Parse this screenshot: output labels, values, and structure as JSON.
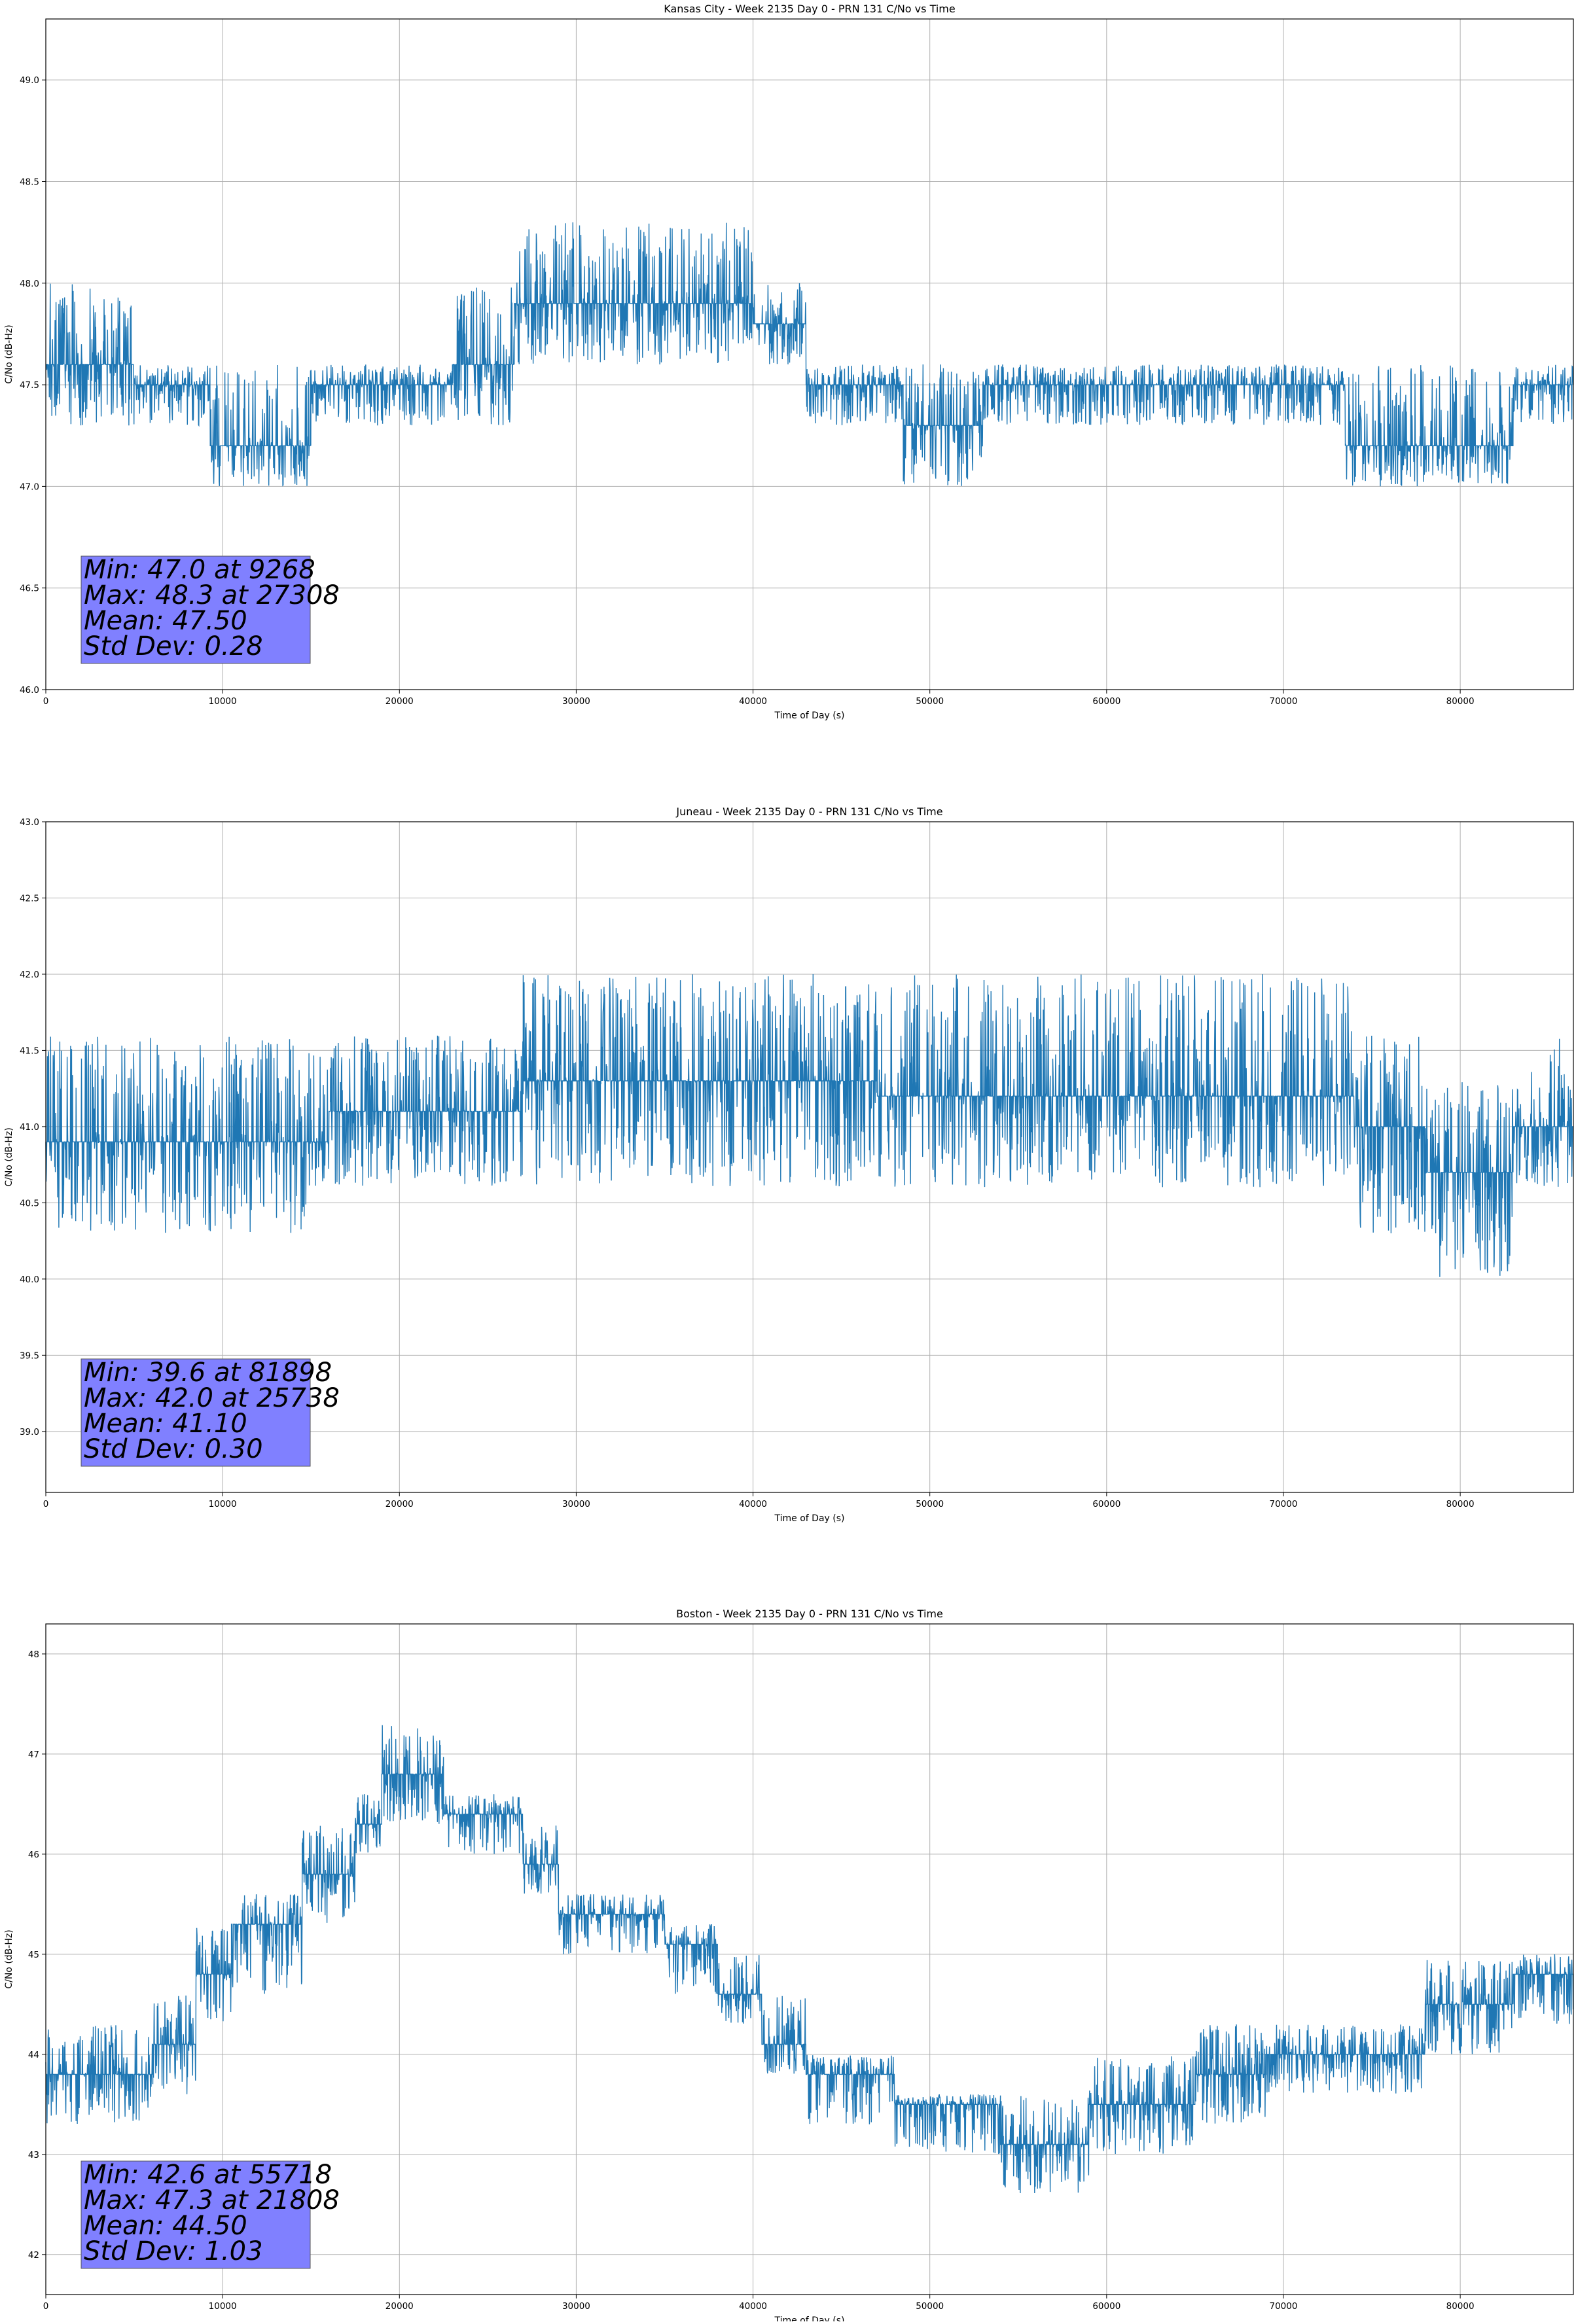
{
  "chart_data": [
    {
      "type": "line",
      "title": "Kansas City - Week 2135 Day 0 - PRN 131 C/No vs Time",
      "xlabel": "Time of Day (s)",
      "ylabel": "C/No (dB-Hz)",
      "xlim": [
        0,
        86400
      ],
      "ylim": [
        46.0,
        49.3
      ],
      "xticks": [
        0,
        10000,
        20000,
        30000,
        40000,
        50000,
        60000,
        70000,
        80000
      ],
      "yticks": [
        46.0,
        46.5,
        47.0,
        47.5,
        48.0,
        48.5,
        49.0
      ],
      "ytick_decimals": 1,
      "grid": true,
      "line_color": "#1f77b4",
      "stats": [
        "Min: 47.0 at 9268",
        "Max: 48.3 at 27308",
        "Mean: 47.50",
        "Std Dev: 0.28"
      ],
      "stats_box_color": "#8080ff",
      "series": [
        {
          "values_by_segment": [
            {
              "x0": 0,
              "x1": 5000,
              "base": 47.6,
              "range": [
                47.3,
                48.0
              ]
            },
            {
              "x0": 5000,
              "x1": 9300,
              "base": 47.5,
              "range": [
                47.3,
                47.6
              ]
            },
            {
              "x0": 9300,
              "x1": 15000,
              "base": 47.2,
              "range": [
                47.0,
                47.6
              ]
            },
            {
              "x0": 15000,
              "x1": 23000,
              "base": 47.5,
              "range": [
                47.3,
                47.6
              ]
            },
            {
              "x0": 23000,
              "x1": 26500,
              "base": 47.6,
              "range": [
                47.3,
                48.0
              ]
            },
            {
              "x0": 26500,
              "x1": 40000,
              "base": 47.9,
              "range": [
                47.6,
                48.3
              ]
            },
            {
              "x0": 40000,
              "x1": 43000,
              "base": 47.8,
              "range": [
                47.6,
                48.0
              ]
            },
            {
              "x0": 43000,
              "x1": 48500,
              "base": 47.5,
              "range": [
                47.3,
                47.6
              ]
            },
            {
              "x0": 48500,
              "x1": 53000,
              "base": 47.3,
              "range": [
                47.0,
                47.6
              ]
            },
            {
              "x0": 53000,
              "x1": 73500,
              "base": 47.5,
              "range": [
                47.3,
                47.6
              ]
            },
            {
              "x0": 73500,
              "x1": 83000,
              "base": 47.2,
              "range": [
                47.0,
                47.6
              ]
            },
            {
              "x0": 83000,
              "x1": 86400,
              "base": 47.5,
              "range": [
                47.3,
                47.6
              ]
            }
          ]
        }
      ]
    },
    {
      "type": "line",
      "title": "Juneau - Week 2135 Day 0 - PRN 131 C/No vs Time",
      "xlabel": "Time of Day (s)",
      "ylabel": "C/No (dB-Hz)",
      "xlim": [
        0,
        86400
      ],
      "ylim": [
        38.6,
        43.0
      ],
      "xticks": [
        0,
        10000,
        20000,
        30000,
        40000,
        50000,
        60000,
        70000,
        80000
      ],
      "yticks": [
        39.0,
        39.5,
        40.0,
        40.5,
        41.0,
        41.5,
        42.0,
        42.5,
        43.0
      ],
      "ytick_decimals": 1,
      "grid": true,
      "line_color": "#1f77b4",
      "stats": [
        "Min: 39.6 at 81898",
        "Max: 42.0 at 25738",
        "Mean: 41.10",
        "Std Dev: 0.30"
      ],
      "stats_box_color": "#8080ff",
      "series": [
        {
          "values_by_segment": [
            {
              "x0": 0,
              "x1": 16000,
              "base": 40.9,
              "range": [
                40.3,
                41.6
              ]
            },
            {
              "x0": 16000,
              "x1": 27000,
              "base": 41.1,
              "range": [
                40.6,
                41.6
              ]
            },
            {
              "x0": 27000,
              "x1": 47000,
              "base": 41.3,
              "range": [
                40.6,
                42.0
              ]
            },
            {
              "x0": 47000,
              "x1": 74000,
              "base": 41.2,
              "range": [
                40.6,
                42.0
              ]
            },
            {
              "x0": 74000,
              "x1": 78000,
              "base": 41.0,
              "range": [
                40.3,
                41.6
              ]
            },
            {
              "x0": 78000,
              "x1": 83000,
              "base": 40.7,
              "range": [
                40.0,
                41.3
              ]
            },
            {
              "x0": 83000,
              "x1": 86400,
              "base": 41.0,
              "range": [
                40.6,
                41.6
              ]
            }
          ]
        }
      ]
    },
    {
      "type": "line",
      "title": "Boston - Week 2135 Day 0 - PRN 131 C/No vs Time",
      "xlabel": "Time of Day (s)",
      "ylabel": "C/No (dB-Hz)",
      "xlim": [
        0,
        86400
      ],
      "ylim": [
        41.6,
        48.3
      ],
      "xticks": [
        0,
        10000,
        20000,
        30000,
        40000,
        50000,
        60000,
        70000,
        80000
      ],
      "yticks": [
        42,
        43,
        44,
        45,
        46,
        47,
        48
      ],
      "ytick_decimals": 0,
      "grid": true,
      "line_color": "#1f77b4",
      "stats": [
        "Min: 42.6 at 55718",
        "Max: 47.3 at 21808",
        "Mean: 44.50",
        "Std Dev: 1.03"
      ],
      "stats_box_color": "#8080ff",
      "series": [
        {
          "values_by_segment": [
            {
              "x0": 0,
              "x1": 6000,
              "base": 43.8,
              "range": [
                43.3,
                44.3
              ]
            },
            {
              "x0": 6000,
              "x1": 8500,
              "base": 44.1,
              "range": [
                43.6,
                44.6
              ]
            },
            {
              "x0": 8500,
              "x1": 10500,
              "base": 44.8,
              "range": [
                44.3,
                45.3
              ]
            },
            {
              "x0": 10500,
              "x1": 14500,
              "base": 45.3,
              "range": [
                44.6,
                45.6
              ]
            },
            {
              "x0": 14500,
              "x1": 17500,
              "base": 45.8,
              "range": [
                45.3,
                46.3
              ]
            },
            {
              "x0": 17500,
              "x1": 19000,
              "base": 46.3,
              "range": [
                46.0,
                46.6
              ]
            },
            {
              "x0": 19000,
              "x1": 22500,
              "base": 46.8,
              "range": [
                46.3,
                47.3
              ]
            },
            {
              "x0": 22500,
              "x1": 27000,
              "base": 46.4,
              "range": [
                46.0,
                46.6
              ]
            },
            {
              "x0": 27000,
              "x1": 29000,
              "base": 45.9,
              "range": [
                45.6,
                46.3
              ]
            },
            {
              "x0": 29000,
              "x1": 35000,
              "base": 45.4,
              "range": [
                45.0,
                45.6
              ]
            },
            {
              "x0": 35000,
              "x1": 38000,
              "base": 45.1,
              "range": [
                44.6,
                45.3
              ]
            },
            {
              "x0": 38000,
              "x1": 40500,
              "base": 44.6,
              "range": [
                44.3,
                45.0
              ]
            },
            {
              "x0": 40500,
              "x1": 43000,
              "base": 44.1,
              "range": [
                43.8,
                44.6
              ]
            },
            {
              "x0": 43000,
              "x1": 48000,
              "base": 43.8,
              "range": [
                43.3,
                44.0
              ]
            },
            {
              "x0": 48000,
              "x1": 54000,
              "base": 43.5,
              "range": [
                43.0,
                43.6
              ]
            },
            {
              "x0": 54000,
              "x1": 59000,
              "base": 43.1,
              "range": [
                42.6,
                43.6
              ]
            },
            {
              "x0": 59000,
              "x1": 65000,
              "base": 43.5,
              "range": [
                43.0,
                44.0
              ]
            },
            {
              "x0": 65000,
              "x1": 69000,
              "base": 43.8,
              "range": [
                43.3,
                44.3
              ]
            },
            {
              "x0": 69000,
              "x1": 78000,
              "base": 44.0,
              "range": [
                43.6,
                44.3
              ]
            },
            {
              "x0": 78000,
              "x1": 83000,
              "base": 44.5,
              "range": [
                44.0,
                45.0
              ]
            },
            {
              "x0": 83000,
              "x1": 86400,
              "base": 44.8,
              "range": [
                44.3,
                45.0
              ]
            }
          ]
        }
      ]
    }
  ]
}
